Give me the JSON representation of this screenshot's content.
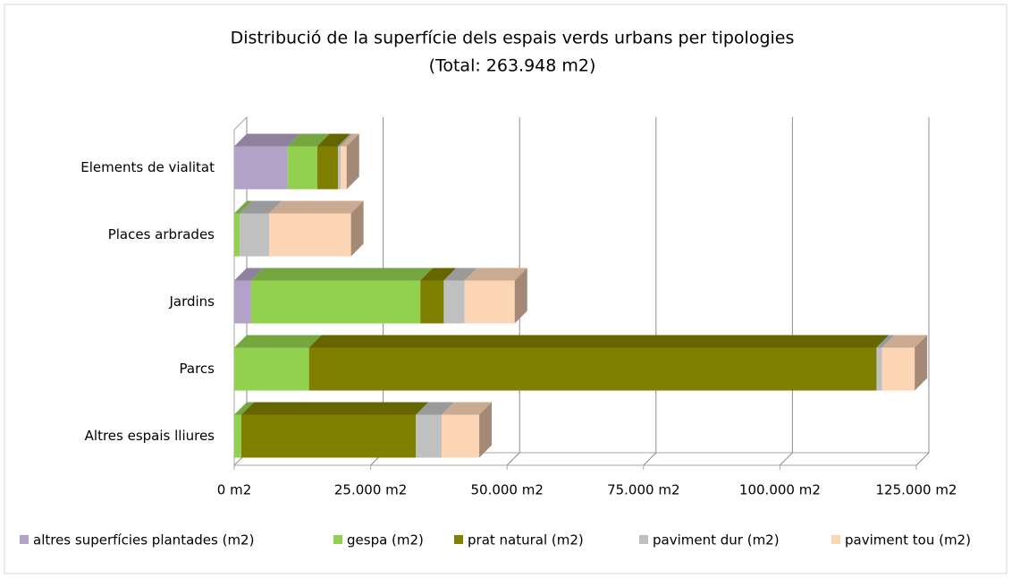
{
  "chart_data": {
    "type": "bar3d_stacked_horizontal",
    "title": "Distribució de la superfície dels espais verds urbans per tipologies",
    "subtitle": "(Total: 263.948 m2)",
    "categories": [
      "Elements de vialitat",
      "Places arbrades",
      "Jardins",
      "Parcs",
      "Altres espais lliures"
    ],
    "series": [
      {
        "name": "altres superfícies plantades (m2)",
        "color": "#b3a2c7",
        "values": [
          9800,
          0,
          3100,
          0,
          0
        ]
      },
      {
        "name": "gespa (m2)",
        "color": "#92d050",
        "values": [
          5400,
          1000,
          31000,
          13700,
          1300
        ]
      },
      {
        "name": "prat natural (m2)",
        "color": "#808000",
        "values": [
          3800,
          0,
          4300,
          104000,
          32000
        ]
      },
      {
        "name": "paviment dur (m2)",
        "color": "#c0c0c0",
        "values": [
          500,
          5400,
          3800,
          1000,
          4700
        ]
      },
      {
        "name": "paviment tou (m2)",
        "color": "#fcd5b5",
        "values": [
          1100,
          15000,
          9200,
          6000,
          6900
        ]
      }
    ],
    "xlim": [
      0,
      125000
    ],
    "xticks": [
      {
        "value": 0,
        "label": "0 m2"
      },
      {
        "value": 25000,
        "label": "25.000 m2"
      },
      {
        "value": 50000,
        "label": "50.000 m2"
      },
      {
        "value": 75000,
        "label": "75.000 m2"
      },
      {
        "value": 100000,
        "label": "100.000 m2"
      },
      {
        "value": 125000,
        "label": "125.000 m2"
      }
    ],
    "grid": true,
    "legend": "bottom"
  }
}
